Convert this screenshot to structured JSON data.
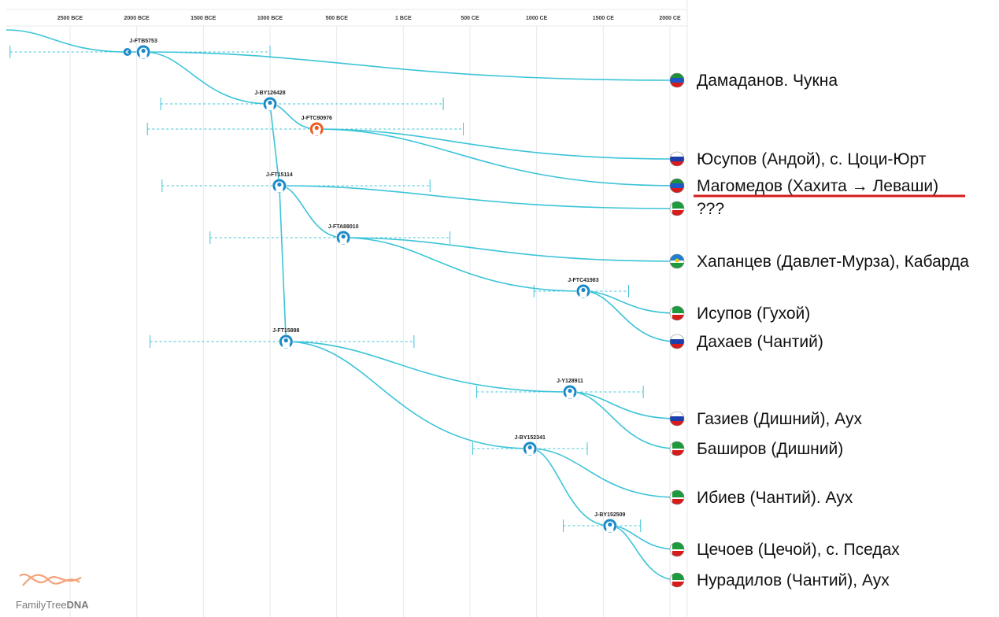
{
  "timeline": {
    "ticks": [
      "2500 BCE",
      "2000 BCE",
      "1500 BCE",
      "1000 BCE",
      "500 BCE",
      "1 BCE",
      "500 CE",
      "1000 CE",
      "1500 CE",
      "2000 CE"
    ],
    "start_year": -2500,
    "end_year": 2000
  },
  "colors": {
    "branch": "#3cc4d8",
    "node": "#1a8ac8",
    "node_highlight": "#ee5a1e",
    "grid": "#e6e9ec",
    "underline": "#d51a1a"
  },
  "nodes": [
    {
      "id": "root",
      "label": "",
      "year": -2070,
      "range": [
        -2950,
        -1000
      ],
      "parent": null,
      "kind": "small",
      "track": 0
    },
    {
      "id": "n1",
      "label": "J-FTB5753",
      "year": -1950,
      "range": null,
      "parent": "root",
      "kind": "person",
      "track": 0
    },
    {
      "id": "n2",
      "label": "J-BY126428",
      "year": -1000,
      "range": [
        -1820,
        300
      ],
      "parent": "n1",
      "kind": "person",
      "track": 3
    },
    {
      "id": "n3",
      "label": "J-FTC90976",
      "year": -650,
      "range": [
        -1920,
        450
      ],
      "parent": "n2",
      "kind": "person-highlight",
      "track": 4
    },
    {
      "id": "n4",
      "label": "J-FT15114",
      "year": -930,
      "range": [
        -1810,
        200
      ],
      "parent": "n2",
      "kind": "person",
      "track": 6
    },
    {
      "id": "n5",
      "label": "J-FTA88010",
      "year": -450,
      "range": [
        -1450,
        350
      ],
      "parent": "n4",
      "kind": "person",
      "track": 8
    },
    {
      "id": "n6",
      "label": "J-FTC41983",
      "year": 1350,
      "range": [
        980,
        1690
      ],
      "parent": "n5",
      "kind": "person",
      "track": 10
    },
    {
      "id": "n7",
      "label": "J-FT15898",
      "year": -880,
      "range": [
        -1900,
        80
      ],
      "parent": "n4",
      "kind": "person",
      "track": 12
    },
    {
      "id": "n8",
      "label": "J-Y128911",
      "year": 1250,
      "range": [
        550,
        1800
      ],
      "parent": "n7",
      "kind": "person",
      "track": 13
    },
    {
      "id": "n9",
      "label": "J-BY152341",
      "year": 950,
      "range": [
        520,
        1380
      ],
      "parent": "n7",
      "kind": "person",
      "track": 15
    },
    {
      "id": "n10",
      "label": "J-BY152509",
      "year": 1550,
      "range": [
        1200,
        1780
      ],
      "parent": "n9",
      "kind": "person",
      "track": 17
    }
  ],
  "leaves": [
    {
      "parent": "n1",
      "label": "Дамаданов. Чукна",
      "flag": "dagestan",
      "track": 1
    },
    {
      "parent": "n3",
      "label": "Юсупов (Андой), с. Цоци-Юрт",
      "flag": "russia",
      "track": 5
    },
    {
      "parent": "n3",
      "label": "Магомедов (Хахита → Леваши)",
      "flag": "dagestan",
      "track": 6,
      "underline": true
    },
    {
      "parent": "n4",
      "label": "???",
      "flag": "chechnya",
      "track": 7
    },
    {
      "parent": "n5",
      "label": "Хапанцев (Давлет-Мурза), Кабарда",
      "flag": "kbr",
      "track": 9
    },
    {
      "parent": "n6",
      "label": "Исупов (Гухой)",
      "flag": "chechnya",
      "track": 11
    },
    {
      "parent": "n6",
      "label": "Дахаев (Чантий)",
      "flag": "russia",
      "track": 12
    },
    {
      "parent": "n8",
      "label": "Газиев (Дишний), Аух",
      "flag": "russia",
      "track": 14
    },
    {
      "parent": "n8",
      "label": "Баширов (Дишний)",
      "flag": "chechnya",
      "track": 15
    },
    {
      "parent": "n9",
      "label": "Ибиев (Чантий). Аух",
      "flag": "chechnya",
      "track": 16
    },
    {
      "parent": "n10",
      "label": "Цечоев (Цечой), с. Пседах",
      "flag": "chechnya",
      "track": 18
    },
    {
      "parent": "n10",
      "label": "Нурадилов (Чантий), Аух",
      "flag": "chechnya",
      "track": 19
    }
  ],
  "logo": {
    "text_a": "FamilyTree",
    "text_b": "DNA"
  }
}
